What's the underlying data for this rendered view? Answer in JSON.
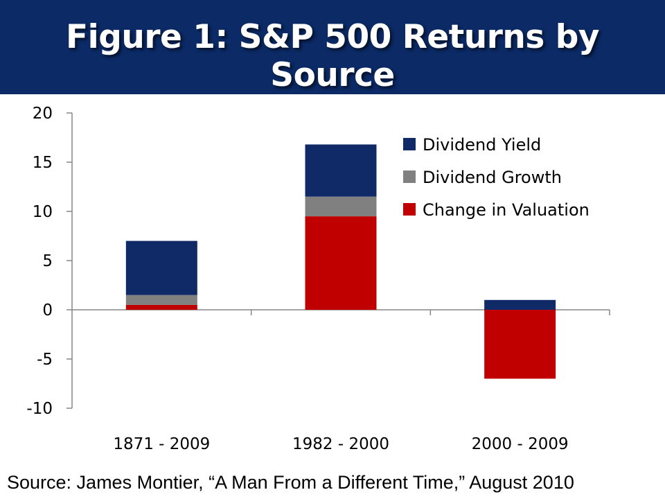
{
  "header": {
    "title": "Figure 1: S&P 500 Returns by Source"
  },
  "source": "Source: James Montier, “A Man From a Different Time,” August 2010",
  "colors": {
    "header_bg": "#0b2a66",
    "dividend_yield": "#0f2a66",
    "dividend_growth": "#808080",
    "change_in_valuation": "#c00000"
  },
  "chart_data": {
    "type": "bar",
    "stacked": true,
    "categories": [
      "1871 - 2009",
      "1982 - 2000",
      "2000 - 2009"
    ],
    "series": [
      {
        "name": "Change in Valuation",
        "values": [
          0.5,
          9.5,
          -7.0
        ],
        "color": "#c00000"
      },
      {
        "name": "Dividend Growth",
        "values": [
          1.0,
          2.0,
          0.0
        ],
        "color": "#808080"
      },
      {
        "name": "Dividend Yield",
        "values": [
          5.5,
          5.3,
          1.0
        ],
        "color": "#0f2a66"
      }
    ],
    "legend_order": [
      "Dividend Yield",
      "Dividend Growth",
      "Change in Valuation"
    ],
    "ylim": [
      -10,
      20
    ],
    "yticks": [
      "20",
      "15",
      "10",
      "5",
      "0",
      "-5",
      "-10"
    ],
    "ytick_values": [
      20,
      15,
      10,
      5,
      0,
      -5,
      -10
    ],
    "grid": false,
    "legend_position": "top-right"
  }
}
